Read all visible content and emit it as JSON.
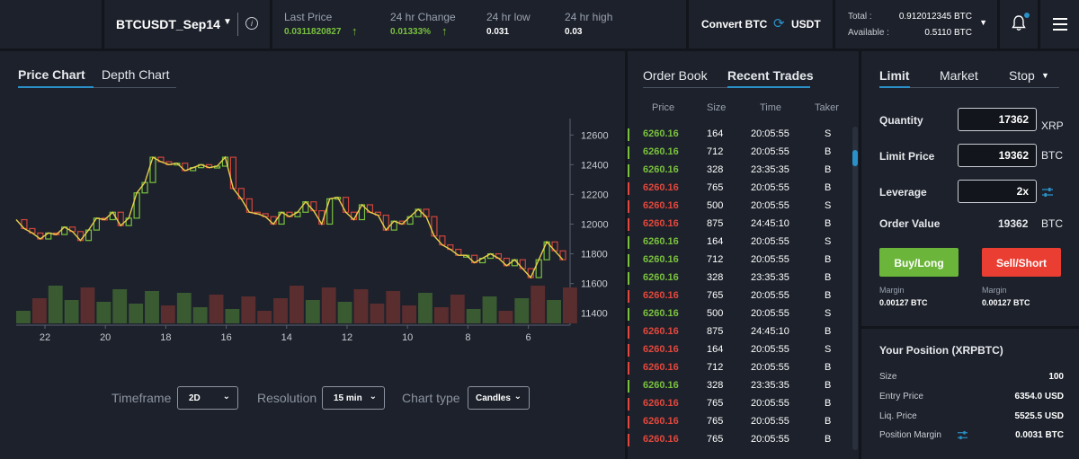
{
  "header": {
    "symbol": "BTCUSDT_Sep14",
    "stats": [
      {
        "label": "Last Price",
        "value": "0.0311820827",
        "arrow": "↑"
      },
      {
        "label": "24 hr Change",
        "value": "0.01333%",
        "arrow": "↑"
      },
      {
        "label": "24 hr low",
        "value": "0.031"
      },
      {
        "label": "24 hr high",
        "value": "0.03"
      }
    ],
    "convert": {
      "from": "Convert BTC",
      "to": "USDT"
    },
    "balance": {
      "total_label": "Total :",
      "total_value": "0.912012345 BTC",
      "available_label": "Available :",
      "available_value": "0.5110 BTC"
    }
  },
  "chart_tabs": [
    "Price Chart",
    "Depth Chart"
  ],
  "chart_data": {
    "type": "candlestick",
    "x_ticks": [
      "22",
      "20",
      "18",
      "16",
      "14",
      "12",
      "10",
      "8",
      "6"
    ],
    "y_ticks": [
      "12600",
      "12400",
      "12200",
      "12000",
      "11800",
      "11600",
      "11400"
    ],
    "ylim": [
      11350,
      12650
    ],
    "close_line": [
      12030,
      11970,
      11940,
      11900,
      11940,
      11930,
      11980,
      11950,
      11890,
      11960,
      12040,
      12030,
      12080,
      11990,
      12040,
      12210,
      12280,
      12450,
      12420,
      12400,
      12410,
      12360,
      12380,
      12400,
      12380,
      12390,
      12450,
      12240,
      12170,
      12080,
      12070,
      12050,
      12000,
      12080,
      12050,
      12080,
      12150,
      12090,
      12000,
      12170,
      12180,
      12080,
      12030,
      12130,
      12080,
      12060,
      11960,
      12020,
      12000,
      12050,
      12100,
      12050,
      11920,
      11860,
      11830,
      11790,
      11790,
      11740,
      11770,
      11800,
      11770,
      11720,
      11760,
      11700,
      11640,
      11760,
      11880,
      11820,
      11760
    ]
  },
  "controls": {
    "timeframe_label": "Timeframe",
    "timeframe_value": "2D",
    "resolution_label": "Resolution",
    "resolution_value": "15 min",
    "charttype_label": "Chart type",
    "charttype_value": "Candles"
  },
  "orderbook": {
    "tabs": [
      "Order Book",
      "Recent Trades"
    ],
    "columns": [
      "Price",
      "Size",
      "Time",
      "Taker"
    ],
    "rows": [
      {
        "price": "6260.16",
        "size": "164",
        "time": "20:05:55",
        "taker": "S",
        "side": "buy"
      },
      {
        "price": "6260.16",
        "size": "712",
        "time": "20:05:55",
        "taker": "B",
        "side": "buy"
      },
      {
        "price": "6260.16",
        "size": "328",
        "time": "23:35:35",
        "taker": "B",
        "side": "buy"
      },
      {
        "price": "6260.16",
        "size": "765",
        "time": "20:05:55",
        "taker": "B",
        "side": "sell"
      },
      {
        "price": "6260.16",
        "size": "500",
        "time": "20:05:55",
        "taker": "S",
        "side": "sell"
      },
      {
        "price": "6260.16",
        "size": "875",
        "time": "24:45:10",
        "taker": "B",
        "side": "sell"
      },
      {
        "price": "6260.16",
        "size": "164",
        "time": "20:05:55",
        "taker": "S",
        "side": "buy"
      },
      {
        "price": "6260.16",
        "size": "712",
        "time": "20:05:55",
        "taker": "B",
        "side": "buy"
      },
      {
        "price": "6260.16",
        "size": "328",
        "time": "23:35:35",
        "taker": "B",
        "side": "buy"
      },
      {
        "price": "6260.16",
        "size": "765",
        "time": "20:05:55",
        "taker": "B",
        "side": "sell"
      },
      {
        "price": "6260.16",
        "size": "500",
        "time": "20:05:55",
        "taker": "S",
        "side": "buy"
      },
      {
        "price": "6260.16",
        "size": "875",
        "time": "24:45:10",
        "taker": "B",
        "side": "sell"
      },
      {
        "price": "6260.16",
        "size": "164",
        "time": "20:05:55",
        "taker": "S",
        "side": "sell"
      },
      {
        "price": "6260.16",
        "size": "712",
        "time": "20:05:55",
        "taker": "B",
        "side": "sell"
      },
      {
        "price": "6260.16",
        "size": "328",
        "time": "23:35:35",
        "taker": "B",
        "side": "buy"
      },
      {
        "price": "6260.16",
        "size": "765",
        "time": "20:05:55",
        "taker": "B",
        "side": "sell"
      },
      {
        "price": "6260.16",
        "size": "765",
        "time": "20:05:55",
        "taker": "B",
        "side": "sell"
      },
      {
        "price": "6260.16",
        "size": "765",
        "time": "20:05:55",
        "taker": "B",
        "side": "sell"
      }
    ]
  },
  "order_form": {
    "tabs": [
      "Limit",
      "Market",
      "Stop"
    ],
    "quantity_label": "Quantity",
    "quantity_value": "17362",
    "quantity_unit": "XRP",
    "limit_label": "Limit Price",
    "limit_value": "19362",
    "limit_unit": "BTC",
    "leverage_label": "Leverage",
    "leverage_value": "2x",
    "order_value_label": "Order Value",
    "order_value": "19362",
    "order_value_unit": "BTC",
    "buy_label": "Buy/Long",
    "sell_label": "Sell/Short",
    "buy_margin_label": "Margin",
    "buy_margin_value": "0.00127 BTC",
    "sell_margin_label": "Margin",
    "sell_margin_value": "0.00127 BTC"
  },
  "position": {
    "title": "Your Position (XRPBTC)",
    "rows": [
      {
        "label": "Size",
        "value": "100"
      },
      {
        "label": "Entry Price",
        "value": "6354.0 USD"
      },
      {
        "label": "Liq. Price",
        "value": "5525.5 USD"
      },
      {
        "label": "Position Margin",
        "value": "0.0031 BTC"
      }
    ]
  },
  "colors": {
    "buy": "#7ac13e",
    "sell": "#e2483d",
    "accent": "#2b90c7",
    "panel": "#1c212b",
    "background": "#12151b"
  }
}
